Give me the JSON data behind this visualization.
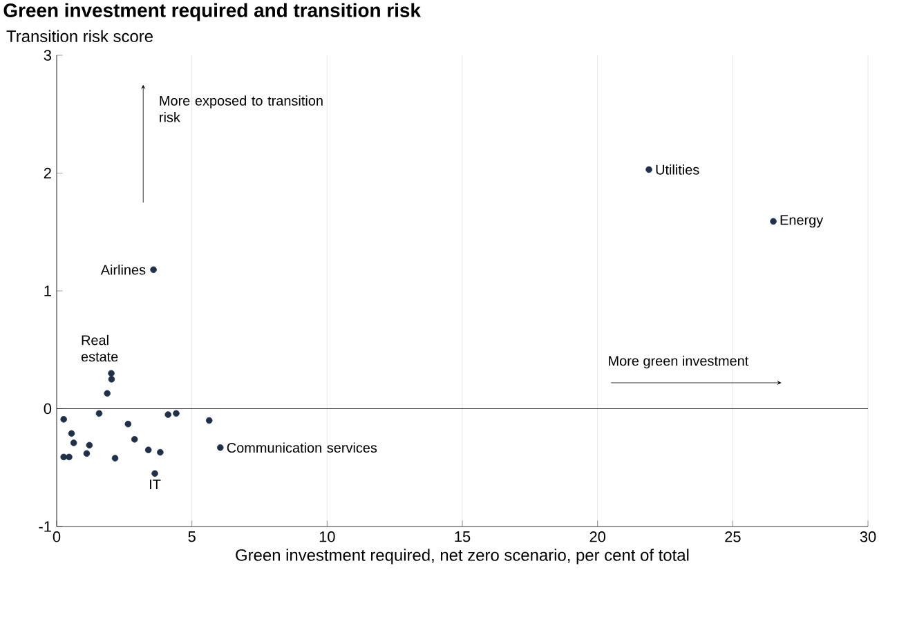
{
  "chart_data": {
    "type": "scatter",
    "title": "Green investment required and transition risk",
    "ylabel": "Transition risk score",
    "xlabel": "Green investment required, net zero scenario, per cent of total",
    "x": [
      0.26,
      1.57,
      2.02,
      2.03,
      1.87,
      0.55,
      0.63,
      0.26,
      0.46,
      1.21,
      1.11,
      2.16,
      2.64,
      2.88,
      3.39,
      3.83,
      3.63,
      4.12,
      4.42,
      5.64,
      6.05,
      3.58,
      21.9,
      26.5
    ],
    "values": [
      -0.09,
      -0.04,
      0.3,
      0.25,
      0.13,
      -0.21,
      -0.29,
      -0.41,
      -0.41,
      -0.31,
      -0.38,
      -0.42,
      -0.13,
      -0.26,
      -0.35,
      -0.37,
      -0.55,
      -0.05,
      -0.04,
      -0.1,
      -0.33,
      1.18,
      2.03,
      1.59
    ],
    "color": "#1f3048",
    "marker": "circle",
    "xlim": [
      0,
      30
    ],
    "ylim": [
      -1,
      3
    ],
    "xticks": [
      0,
      5,
      10,
      15,
      20,
      25,
      30
    ],
    "yticks": [
      -1,
      0,
      1,
      2,
      3
    ],
    "grid": "x",
    "ref_lines": [
      {
        "axis": "y",
        "value": 0,
        "color": "#000000"
      }
    ],
    "annotations": [
      {
        "text": "Airlines",
        "x": 3.58,
        "y": 1.18
      },
      {
        "text": "Utilities",
        "x": 21.9,
        "y": 2.03
      },
      {
        "text": "Energy",
        "x": 26.5,
        "y": 1.59
      },
      {
        "text": "Real estate",
        "x": 2.02,
        "y": 0.3
      },
      {
        "text": "Communication services",
        "x": 6.05,
        "y": -0.33
      },
      {
        "text": "IT",
        "x": 3.63,
        "y": -0.55
      },
      "More exposed to transition risk",
      "More green investment"
    ]
  }
}
